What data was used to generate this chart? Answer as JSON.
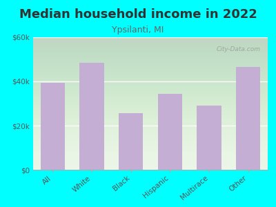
{
  "title": "Median household income in 2022",
  "subtitle": "Ypsilanti, MI",
  "categories": [
    "All",
    "White",
    "Black",
    "Hispanic",
    "Multirace",
    "Other"
  ],
  "values": [
    39500,
    48500,
    25500,
    34500,
    29000,
    46500
  ],
  "bar_color": "#c5aed4",
  "background_outer": "#00ffff",
  "background_inner": "#eaf5e6",
  "title_color": "#333333",
  "subtitle_color": "#666666",
  "tick_label_color": "#555555",
  "ylim": [
    0,
    60000
  ],
  "yticks": [
    0,
    20000,
    40000,
    60000
  ],
  "ytick_labels": [
    "$0",
    "$20k",
    "$40k",
    "$60k"
  ],
  "watermark": "City-Data.com",
  "title_fontsize": 13,
  "subtitle_fontsize": 9,
  "tick_fontsize": 7.5
}
